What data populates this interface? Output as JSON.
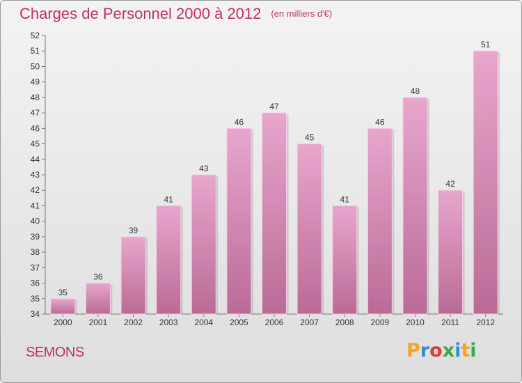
{
  "title": "Charges de Personnel 2000 à 2012",
  "unit_note": "(en milliers d'€)",
  "commune": "SEMONS",
  "logo_text": "Proxiti",
  "colors": {
    "title": "#c0306a",
    "bar_top": "#e8a6cd",
    "bar_bottom": "#b96b96",
    "bar_edge": "#f4cfe4",
    "logo": [
      "#f3a423",
      "#2f8fd0",
      "#e23b36",
      "#3aaa47",
      "#2f8fd0",
      "#f3a423",
      "#3aaa47"
    ]
  },
  "chart_data": {
    "type": "bar",
    "title": "Charges de Personnel 2000 à 2012",
    "subtitle": "(en milliers d'€)",
    "xlabel": "",
    "ylabel": "",
    "categories": [
      "2000",
      "2001",
      "2002",
      "2003",
      "2004",
      "2005",
      "2006",
      "2007",
      "2008",
      "2009",
      "2010",
      "2011",
      "2012"
    ],
    "values": [
      35,
      36,
      39,
      41,
      43,
      46,
      47,
      45,
      41,
      46,
      48,
      42,
      51
    ],
    "ylim": [
      34,
      52
    ],
    "yticks": [
      34,
      35,
      36,
      37,
      38,
      39,
      40,
      41,
      42,
      43,
      44,
      45,
      46,
      47,
      48,
      49,
      50,
      51,
      52
    ],
    "grid": false,
    "legend": "none"
  }
}
